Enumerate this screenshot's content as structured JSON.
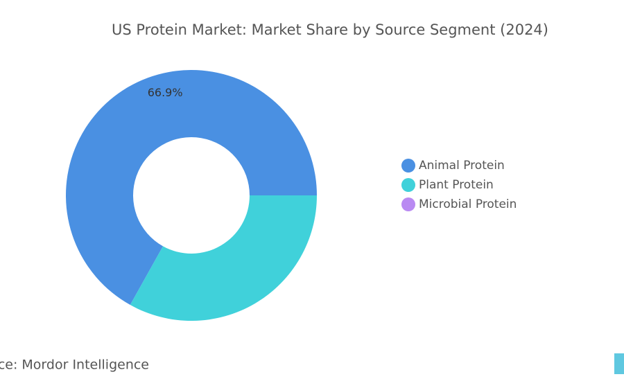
{
  "chart_data": {
    "type": "donut",
    "title": "US Protein Market: Market Share by Source Segment (2024)",
    "source": "Source: Mordor Intelligence",
    "categories": [
      "Animal Protein",
      "Plant Protein",
      "Microbial Protein"
    ],
    "values": [
      66.9,
      33.1,
      0
    ],
    "value_labels": [
      "66.9%",
      null,
      null
    ],
    "colors": [
      "#4a90e2",
      "#40d1da",
      "#b98af2"
    ],
    "legend": "right"
  }
}
